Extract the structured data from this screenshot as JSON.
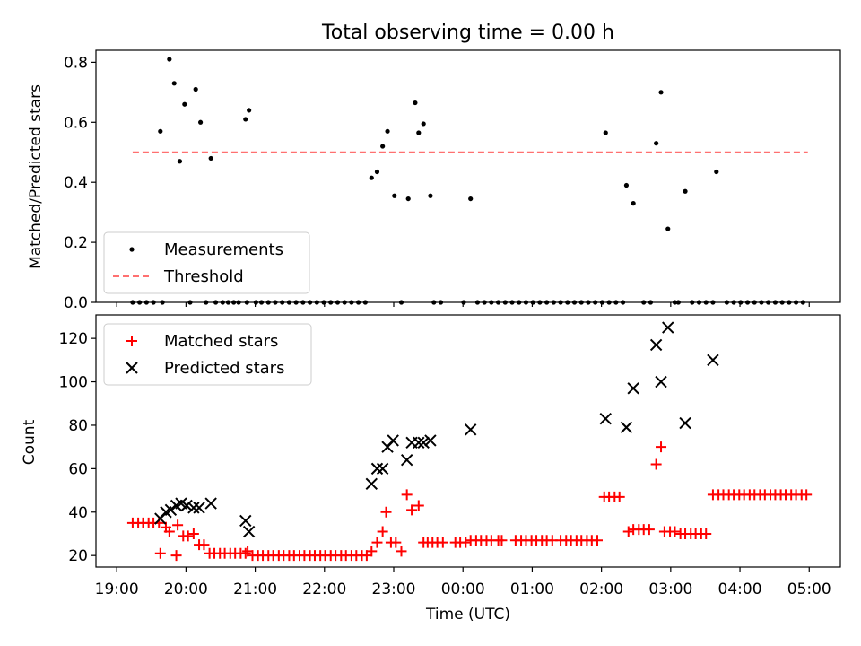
{
  "chart_data": [
    {
      "type": "scatter",
      "title": "Total observing time = 0.00 h",
      "xlabel": "",
      "ylabel": "Matched/Predicted stars",
      "xlim": [
        18.7,
        29.45
      ],
      "ylim": [
        0.0,
        0.84
      ],
      "yticks": [
        0.0,
        0.2,
        0.4,
        0.6,
        0.8
      ],
      "ytick_labels": [
        "0.0",
        "0.2",
        "0.4",
        "0.6",
        "0.8"
      ],
      "legend": {
        "position": "lower-left",
        "entries": [
          "Measurements",
          "Threshold"
        ]
      },
      "series": [
        {
          "name": "Measurements",
          "marker": "dot",
          "color": "#000000",
          "x": [
            19.23,
            19.33,
            19.43,
            19.53,
            19.63,
            19.66,
            19.76,
            19.83,
            19.91,
            19.98,
            20.06,
            20.14,
            20.21,
            20.29,
            20.36,
            20.43,
            20.53,
            20.61,
            20.69,
            20.76,
            20.86,
            20.88,
            20.91,
            21.01,
            21.09,
            21.19,
            21.29,
            21.39,
            21.49,
            21.59,
            21.69,
            21.79,
            21.89,
            21.99,
            22.09,
            22.19,
            22.29,
            22.39,
            22.49,
            22.59,
            22.68,
            22.76,
            22.84,
            22.91,
            23.01,
            23.11,
            23.21,
            23.31,
            23.36,
            23.43,
            23.53,
            23.58,
            23.68,
            24.01,
            24.11,
            24.21,
            24.31,
            24.41,
            24.51,
            24.61,
            24.71,
            24.81,
            24.91,
            25.01,
            25.11,
            25.21,
            25.31,
            25.41,
            25.51,
            25.61,
            25.71,
            25.81,
            25.91,
            26.01,
            26.06,
            26.11,
            26.21,
            26.31,
            26.36,
            26.46,
            26.61,
            26.71,
            26.79,
            26.86,
            26.96,
            27.06,
            27.11,
            27.21,
            27.31,
            27.41,
            27.51,
            27.61,
            27.66,
            27.81,
            27.91,
            28.01,
            28.11,
            28.21,
            28.31,
            28.41,
            28.51,
            28.61,
            28.71,
            28.81,
            28.91
          ],
          "y": [
            0,
            0,
            0,
            0,
            0.57,
            0,
            0.81,
            0.73,
            0.47,
            0.66,
            0,
            0.71,
            0.6,
            0,
            0.48,
            0,
            0,
            0,
            0,
            0,
            0.61,
            0,
            0.64,
            0,
            0,
            0,
            0,
            0,
            0,
            0,
            0,
            0,
            0,
            0,
            0,
            0,
            0,
            0,
            0,
            0,
            0.415,
            0.435,
            0.52,
            0.57,
            0.355,
            0,
            0.345,
            0.665,
            0.565,
            0.595,
            0.355,
            0,
            0,
            0,
            0.345,
            0,
            0,
            0,
            0,
            0,
            0,
            0,
            0,
            0,
            0,
            0,
            0,
            0,
            0,
            0,
            0,
            0,
            0,
            0,
            0.565,
            0,
            0,
            0,
            0.39,
            0.33,
            0,
            0,
            0.53,
            0.7,
            0.245,
            0,
            0,
            0.37,
            0,
            0,
            0,
            0,
            0.435,
            0,
            0,
            0,
            0,
            0,
            0,
            0,
            0,
            0,
            0,
            0,
            0
          ]
        },
        {
          "name": "Threshold",
          "style": "dashed",
          "color": "#ff7070",
          "x": [
            19.23,
            28.98
          ],
          "y": [
            0.5,
            0.5
          ]
        }
      ]
    },
    {
      "type": "scatter",
      "title": "",
      "xlabel": "Time (UTC)",
      "ylabel": "Count",
      "xlim": [
        18.7,
        29.45
      ],
      "ylim": [
        14.7,
        130.8
      ],
      "xticks": [
        19,
        20,
        21,
        22,
        23,
        24,
        25,
        26,
        27,
        28,
        29
      ],
      "xtick_labels": [
        "19:00",
        "20:00",
        "21:00",
        "22:00",
        "23:00",
        "00:00",
        "01:00",
        "02:00",
        "03:00",
        "04:00",
        "05:00"
      ],
      "yticks": [
        20,
        40,
        60,
        80,
        100,
        120
      ],
      "ytick_labels": [
        "20",
        "40",
        "60",
        "80",
        "100",
        "120"
      ],
      "legend": {
        "position": "top-left",
        "entries": [
          "Matched stars",
          "Predicted stars"
        ]
      },
      "series": [
        {
          "name": "Matched stars",
          "marker": "plus",
          "color": "#ff0000",
          "x": [
            19.23,
            19.31,
            19.38,
            19.46,
            19.53,
            19.61,
            19.63,
            19.71,
            19.76,
            19.86,
            19.88,
            19.96,
            20.03,
            20.11,
            20.19,
            20.26,
            20.34,
            20.41,
            20.49,
            20.56,
            20.64,
            20.71,
            20.79,
            20.86,
            20.89,
            20.96,
            21.04,
            21.11,
            21.19,
            21.26,
            21.34,
            21.41,
            21.49,
            21.56,
            21.64,
            21.71,
            21.79,
            21.86,
            21.94,
            22.01,
            22.09,
            22.16,
            22.24,
            22.31,
            22.39,
            22.46,
            22.54,
            22.61,
            22.68,
            22.76,
            22.84,
            22.89,
            22.96,
            23.03,
            23.11,
            23.19,
            23.26,
            23.36,
            23.43,
            23.49,
            23.56,
            23.63,
            23.71,
            23.89,
            23.96,
            24.04,
            24.11,
            24.19,
            24.26,
            24.34,
            24.41,
            24.51,
            24.56,
            24.76,
            24.84,
            24.91,
            24.99,
            25.06,
            25.14,
            25.21,
            25.29,
            25.41,
            25.49,
            25.56,
            25.64,
            25.71,
            25.79,
            25.86,
            25.94,
            26.04,
            26.11,
            26.19,
            26.26,
            26.39,
            26.46,
            26.54,
            26.61,
            26.69,
            26.79,
            26.86,
            26.91,
            26.99,
            27.06,
            27.14,
            27.21,
            27.29,
            27.36,
            27.44,
            27.51,
            27.61,
            27.69,
            27.76,
            27.84,
            27.91,
            27.99,
            28.06,
            28.14,
            28.21,
            28.29,
            28.36,
            28.44,
            28.51,
            28.59,
            28.66,
            28.74,
            28.81,
            28.89,
            28.96
          ],
          "y": [
            35,
            35,
            35,
            35,
            35,
            35,
            21,
            33,
            31,
            20,
            34,
            29,
            29,
            30,
            25,
            25,
            21,
            21,
            21,
            21,
            21,
            21,
            21,
            21,
            22,
            20,
            20,
            20,
            20,
            20,
            20,
            20,
            20,
            20,
            20,
            20,
            20,
            20,
            20,
            20,
            20,
            20,
            20,
            20,
            20,
            20,
            20,
            20,
            22,
            26,
            31,
            40,
            26,
            26,
            22,
            48,
            41,
            43,
            26,
            26,
            26,
            26,
            26,
            26,
            26,
            26,
            27,
            27,
            27,
            27,
            27,
            27,
            27,
            27,
            27,
            27,
            27,
            27,
            27,
            27,
            27,
            27,
            27,
            27,
            27,
            27,
            27,
            27,
            27,
            47,
            47,
            47,
            47,
            31,
            32,
            32,
            32,
            32,
            62,
            70,
            31,
            31,
            31,
            30,
            30,
            30,
            30,
            30,
            30,
            48,
            48,
            48,
            48,
            48,
            48,
            48,
            48,
            48,
            48,
            48,
            48,
            48,
            48,
            48,
            48,
            48,
            48,
            48
          ]
        },
        {
          "name": "Predicted stars",
          "marker": "x",
          "color": "#000000",
          "x": [
            19.63,
            19.71,
            19.78,
            19.86,
            19.93,
            20.01,
            20.11,
            20.19,
            20.36,
            20.86,
            20.91,
            22.68,
            22.76,
            22.84,
            22.91,
            22.99,
            23.19,
            23.26,
            23.36,
            23.43,
            23.53,
            24.11,
            26.06,
            26.36,
            26.46,
            26.79,
            26.86,
            26.96,
            27.21,
            27.61
          ],
          "y": [
            37,
            40,
            41,
            43,
            44,
            43,
            42,
            42,
            44,
            36,
            31,
            53,
            60,
            60,
            70,
            73,
            64,
            72,
            72,
            72,
            73,
            78,
            83,
            79,
            97,
            117,
            100,
            125,
            81,
            110
          ]
        }
      ]
    }
  ]
}
